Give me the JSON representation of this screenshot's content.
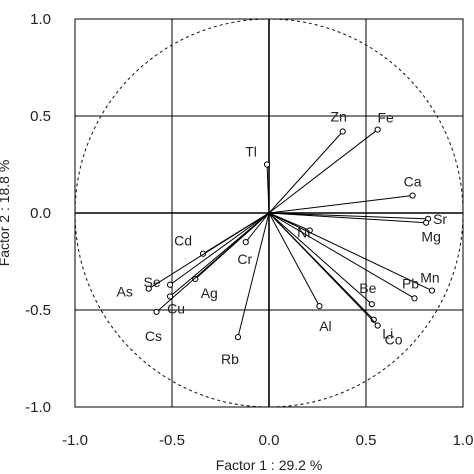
{
  "chart_data": {
    "type": "scatter",
    "subtype": "pca-correlation-circle",
    "xlabel": "Factor 1 : 29.2 %",
    "ylabel": "Factor 2 : 18.8 %",
    "xlim": [
      -1.0,
      1.0
    ],
    "ylim": [
      -1.0,
      1.0
    ],
    "x_ticks": [
      "-1.0",
      "-0.5",
      "0.0",
      "0.5",
      "1.0"
    ],
    "y_ticks": [
      "1.0",
      "0.5",
      "0.0",
      "-0.5",
      "-1.0"
    ],
    "grid": true,
    "unit_circle": true,
    "variables": [
      {
        "name": "Zn",
        "x": 0.38,
        "y": 0.42
      },
      {
        "name": "Fe",
        "x": 0.56,
        "y": 0.43
      },
      {
        "name": "Tl",
        "x": -0.01,
        "y": 0.25
      },
      {
        "name": "Ca",
        "x": 0.74,
        "y": 0.09
      },
      {
        "name": "Sr",
        "x": 0.82,
        "y": -0.03
      },
      {
        "name": "Mg",
        "x": 0.81,
        "y": -0.05
      },
      {
        "name": "Ni",
        "x": 0.21,
        "y": -0.09
      },
      {
        "name": "Mn",
        "x": 0.84,
        "y": -0.4
      },
      {
        "name": "Pb",
        "x": 0.75,
        "y": -0.44
      },
      {
        "name": "Be",
        "x": 0.53,
        "y": -0.47
      },
      {
        "name": "Li",
        "x": 0.54,
        "y": -0.55
      },
      {
        "name": "Co",
        "x": 0.56,
        "y": -0.58
      },
      {
        "name": "Al",
        "x": 0.26,
        "y": -0.48
      },
      {
        "name": "Rb",
        "x": -0.16,
        "y": -0.64
      },
      {
        "name": "Cd",
        "x": -0.34,
        "y": -0.21
      },
      {
        "name": "Cr",
        "x": -0.12,
        "y": -0.15
      },
      {
        "name": "Se",
        "x": -0.51,
        "y": -0.37
      },
      {
        "name": "Ag",
        "x": -0.38,
        "y": -0.34
      },
      {
        "name": "As",
        "x": -0.62,
        "y": -0.39
      },
      {
        "name": "Cu",
        "x": -0.51,
        "y": -0.43
      },
      {
        "name": "Cs",
        "x": -0.58,
        "y": -0.51
      }
    ]
  }
}
